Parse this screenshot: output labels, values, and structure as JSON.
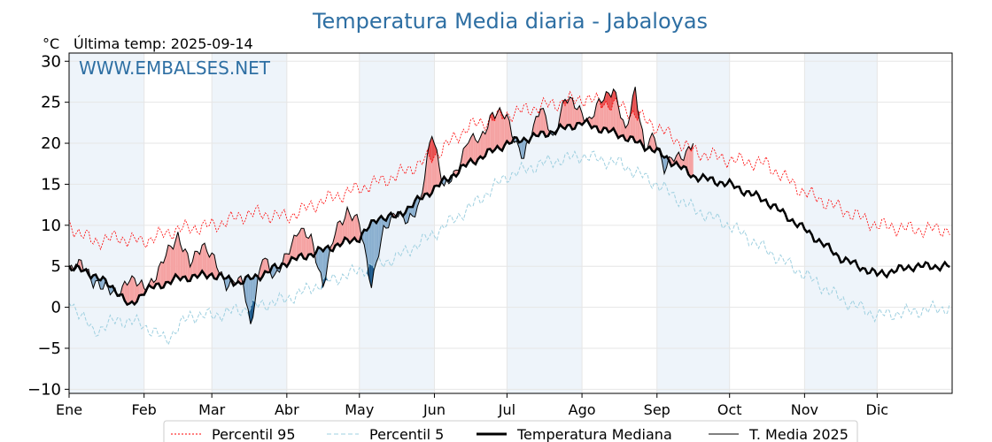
{
  "chart_data": {
    "type": "line",
    "title": "Temperatura Media diaria - Jabaloyas",
    "unit_label": "°C",
    "last_temp_label": "Última temp: 2025-09-14",
    "watermark": "WWW.EMBALSES.NET",
    "ylim": [
      -10.5,
      31
    ],
    "yticks": [
      "30",
      "25",
      "20",
      "15",
      "10",
      "5",
      "0",
      "−5",
      "−10"
    ],
    "ytick_values": [
      30,
      25,
      20,
      15,
      10,
      5,
      0,
      -5,
      -10
    ],
    "months": [
      "Ene",
      "Feb",
      "Mar",
      "Abr",
      "May",
      "Jun",
      "Jul",
      "Ago",
      "Sep",
      "Oct",
      "Nov",
      "Dic"
    ],
    "month_start_days": [
      0,
      31,
      59,
      90,
      120,
      151,
      181,
      212,
      243,
      273,
      304,
      334
    ],
    "x_days": 365,
    "grid": true,
    "legend_placement": "bottom",
    "colors": {
      "p95": "#ff0000",
      "p5": "#9fd0e0",
      "median": "#000000",
      "t2025": "#000000",
      "above_fill": "#f5a3a3",
      "above_dark": "#e85050",
      "below_fill": "#8bb0d0",
      "below_dark": "#1e5a8c",
      "month_band": "#eef4fa",
      "title": "#2e6fa3"
    },
    "series_anchors": {
      "p95": [
        [
          0,
          10
        ],
        [
          10,
          8
        ],
        [
          20,
          8.5
        ],
        [
          30,
          8
        ],
        [
          45,
          9.5
        ],
        [
          60,
          10
        ],
        [
          75,
          11.5
        ],
        [
          90,
          11
        ],
        [
          105,
          13
        ],
        [
          120,
          14.5
        ],
        [
          135,
          16
        ],
        [
          151,
          18.5
        ],
        [
          165,
          22
        ],
        [
          181,
          23.5
        ],
        [
          195,
          24.5
        ],
        [
          212,
          25.5
        ],
        [
          228,
          24.5
        ],
        [
          243,
          22
        ],
        [
          258,
          19
        ],
        [
          273,
          18
        ],
        [
          288,
          17.5
        ],
        [
          304,
          14
        ],
        [
          319,
          12
        ],
        [
          334,
          10
        ],
        [
          349,
          9.5
        ],
        [
          364,
          9.5
        ]
      ],
      "p5": [
        [
          0,
          1
        ],
        [
          10,
          -3
        ],
        [
          20,
          -1.5
        ],
        [
          30,
          -2
        ],
        [
          40,
          -4
        ],
        [
          50,
          -1
        ],
        [
          60,
          -1
        ],
        [
          75,
          0
        ],
        [
          90,
          1
        ],
        [
          105,
          3
        ],
        [
          120,
          4.5
        ],
        [
          135,
          6
        ],
        [
          151,
          9
        ],
        [
          165,
          12
        ],
        [
          181,
          16
        ],
        [
          195,
          17.5
        ],
        [
          212,
          18.5
        ],
        [
          228,
          17.5
        ],
        [
          243,
          15
        ],
        [
          258,
          12
        ],
        [
          273,
          10
        ],
        [
          288,
          7
        ],
        [
          304,
          4
        ],
        [
          319,
          1
        ],
        [
          334,
          -1
        ],
        [
          349,
          -0.5
        ],
        [
          364,
          0
        ]
      ],
      "median": [
        [
          0,
          5
        ],
        [
          10,
          4
        ],
        [
          20,
          2
        ],
        [
          25,
          0
        ],
        [
          31,
          2
        ],
        [
          45,
          3.5
        ],
        [
          59,
          4
        ],
        [
          70,
          3
        ],
        [
          80,
          4
        ],
        [
          90,
          5.5
        ],
        [
          105,
          7
        ],
        [
          120,
          8.5
        ],
        [
          128,
          11
        ],
        [
          135,
          11
        ],
        [
          151,
          14.5
        ],
        [
          165,
          17.5
        ],
        [
          181,
          20
        ],
        [
          195,
          21
        ],
        [
          212,
          22.5
        ],
        [
          228,
          21
        ],
        [
          243,
          19
        ],
        [
          258,
          16
        ],
        [
          273,
          15
        ],
        [
          288,
          13
        ],
        [
          304,
          9.5
        ],
        [
          319,
          6
        ],
        [
          334,
          4
        ],
        [
          349,
          5
        ],
        [
          364,
          5
        ]
      ],
      "t2025": [
        [
          0,
          4
        ],
        [
          5,
          6
        ],
        [
          10,
          2.5
        ],
        [
          15,
          3
        ],
        [
          20,
          1
        ],
        [
          25,
          4
        ],
        [
          31,
          2
        ],
        [
          38,
          5
        ],
        [
          45,
          9
        ],
        [
          50,
          5
        ],
        [
          55,
          8
        ],
        [
          59,
          6
        ],
        [
          65,
          3
        ],
        [
          72,
          3
        ],
        [
          75,
          -2
        ],
        [
          80,
          6
        ],
        [
          85,
          4
        ],
        [
          90,
          6
        ],
        [
          95,
          10
        ],
        [
          100,
          8
        ],
        [
          105,
          3
        ],
        [
          110,
          9
        ],
        [
          115,
          12
        ],
        [
          120,
          10
        ],
        [
          125,
          3
        ],
        [
          130,
          9
        ],
        [
          135,
          12
        ],
        [
          140,
          10
        ],
        [
          145,
          13
        ],
        [
          150,
          21
        ],
        [
          155,
          15
        ],
        [
          160,
          16
        ],
        [
          165,
          21
        ],
        [
          170,
          20
        ],
        [
          175,
          24
        ],
        [
          181,
          23
        ],
        [
          188,
          18
        ],
        [
          195,
          25
        ],
        [
          200,
          20
        ],
        [
          205,
          26
        ],
        [
          210,
          24
        ],
        [
          215,
          23
        ],
        [
          220,
          25
        ],
        [
          225,
          27
        ],
        [
          230,
          21
        ],
        [
          234,
          27
        ],
        [
          238,
          19
        ],
        [
          242,
          21
        ],
        [
          246,
          17
        ],
        [
          250,
          18
        ],
        [
          255,
          19
        ],
        [
          258,
          20
        ]
      ]
    }
  },
  "legend": {
    "items": [
      "Percentil 95",
      "Percentil 5",
      "Temperatura Mediana",
      "T. Media 2025"
    ]
  }
}
